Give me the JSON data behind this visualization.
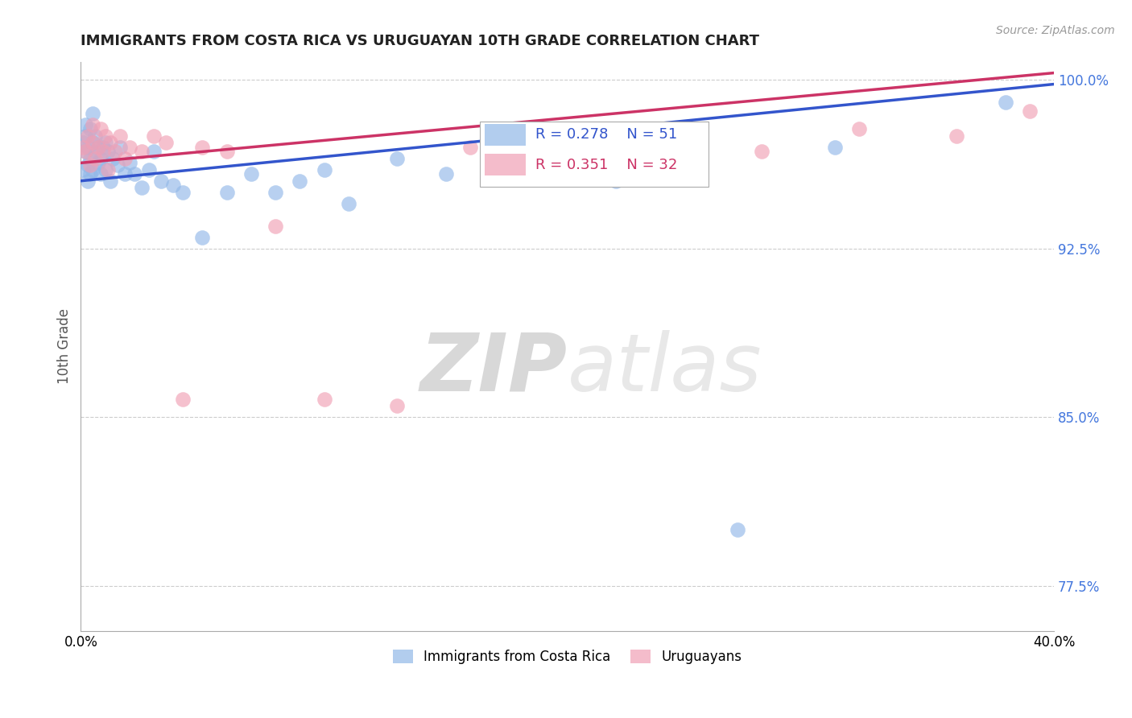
{
  "title": "IMMIGRANTS FROM COSTA RICA VS URUGUAYAN 10TH GRADE CORRELATION CHART",
  "source_text": "Source: ZipAtlas.com",
  "ylabel_label": "10th Grade",
  "xmin": 0.0,
  "xmax": 0.4,
  "ymin": 0.755,
  "ymax": 1.008,
  "ytick_vals": [
    0.775,
    0.85,
    0.925,
    1.0
  ],
  "ytick_labels": [
    "77.5%",
    "85.0%",
    "92.5%",
    "100.0%"
  ],
  "xtick_vals": [
    0.0,
    0.1,
    0.2,
    0.3,
    0.4
  ],
  "xtick_labels": [
    "0.0%",
    "",
    "",
    "",
    "40.0%"
  ],
  "legend_label_blue": "Immigrants from Costa Rica",
  "legend_label_pink": "Uruguayans",
  "corr_blue_R": "0.278",
  "corr_blue_N": "51",
  "corr_pink_R": "0.351",
  "corr_pink_N": "32",
  "blue_scatter_x": [
    0.001,
    0.001,
    0.002,
    0.002,
    0.002,
    0.003,
    0.003,
    0.003,
    0.004,
    0.004,
    0.004,
    0.005,
    0.005,
    0.005,
    0.006,
    0.006,
    0.007,
    0.007,
    0.008,
    0.008,
    0.009,
    0.01,
    0.01,
    0.011,
    0.012,
    0.013,
    0.015,
    0.016,
    0.018,
    0.02,
    0.022,
    0.025,
    0.028,
    0.03,
    0.033,
    0.038,
    0.042,
    0.05,
    0.06,
    0.07,
    0.08,
    0.09,
    0.1,
    0.11,
    0.13,
    0.15,
    0.17,
    0.22,
    0.27,
    0.31,
    0.38
  ],
  "blue_scatter_y": [
    0.96,
    0.972,
    0.968,
    0.975,
    0.98,
    0.962,
    0.97,
    0.955,
    0.965,
    0.978,
    0.958,
    0.972,
    0.96,
    0.985,
    0.968,
    0.975,
    0.963,
    0.97,
    0.958,
    0.965,
    0.97,
    0.96,
    0.972,
    0.968,
    0.955,
    0.965,
    0.962,
    0.97,
    0.958,
    0.963,
    0.958,
    0.952,
    0.96,
    0.968,
    0.955,
    0.953,
    0.95,
    0.93,
    0.95,
    0.958,
    0.95,
    0.955,
    0.96,
    0.945,
    0.965,
    0.958,
    0.962,
    0.955,
    0.8,
    0.97,
    0.99
  ],
  "pink_scatter_x": [
    0.001,
    0.002,
    0.003,
    0.004,
    0.005,
    0.005,
    0.006,
    0.007,
    0.008,
    0.009,
    0.01,
    0.011,
    0.012,
    0.014,
    0.016,
    0.018,
    0.02,
    0.025,
    0.03,
    0.035,
    0.042,
    0.05,
    0.06,
    0.08,
    0.1,
    0.13,
    0.16,
    0.22,
    0.28,
    0.32,
    0.36,
    0.39
  ],
  "pink_scatter_y": [
    0.97,
    0.968,
    0.975,
    0.962,
    0.972,
    0.98,
    0.965,
    0.97,
    0.978,
    0.968,
    0.975,
    0.96,
    0.972,
    0.968,
    0.975,
    0.965,
    0.97,
    0.968,
    0.975,
    0.972,
    0.858,
    0.97,
    0.968,
    0.935,
    0.858,
    0.855,
    0.97,
    0.978,
    0.968,
    0.978,
    0.975,
    0.986
  ],
  "blue_color": "#92b8e8",
  "pink_color": "#f0a0b5",
  "blue_line_color": "#3355cc",
  "pink_line_color": "#cc3366",
  "ytick_color": "#4477dd",
  "title_fontsize": 13,
  "source_fontsize": 10,
  "watermark_zip": "ZIP",
  "watermark_atlas": "atlas",
  "background_color": "#ffffff",
  "grid_color": "#cccccc"
}
